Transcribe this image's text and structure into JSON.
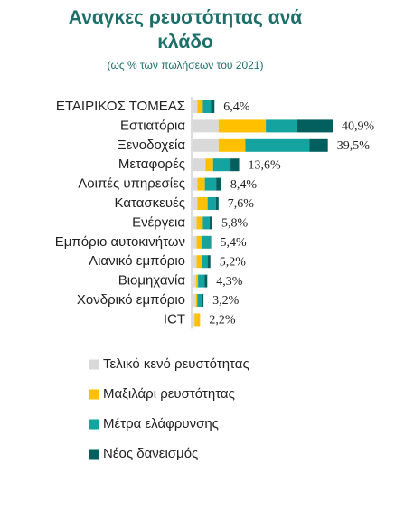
{
  "chart_data": {
    "type": "stacked-bar-horizontal",
    "title": "Αναγκες ρευστότητας ανά κλάδο",
    "subtitle": "(ως % των πωλήσεων του 2021)",
    "categories": [
      "ΕΤΑΙΡΙΚΟΣ ΤΟΜΕΑΣ",
      "Εστιατόρια",
      "Ξενοδοχεία",
      "Μεταφορές",
      "Λοιπές υπηρεσίες",
      "Κατασκευές",
      "Ενέργεια",
      "Εμπόριο αυτοκινήτων",
      "Λιανικό εμπόριο",
      "Βιομηχανία",
      "Χονδρικό εμπόριο",
      "ICT"
    ],
    "series": [
      {
        "name": "Τελικό κενό ρευστότητας",
        "color": "#d9d9d9",
        "values": [
          1.4,
          7.6,
          7.6,
          3.8,
          1.4,
          1.4,
          1.2,
          1.2,
          1.2,
          1.0,
          1.0,
          0.6
        ]
      },
      {
        "name": "Μαξιλάρι ρευστότητας",
        "color": "#ffc000",
        "values": [
          1.6,
          13.8,
          7.8,
          2.2,
          2.2,
          3.0,
          1.8,
          1.4,
          1.6,
          0.6,
          0.4,
          1.6
        ]
      },
      {
        "name": "Μέτρα ελάφρυνσης",
        "color": "#14a39e",
        "values": [
          2.4,
          9.2,
          18.7,
          5.1,
          3.3,
          2.4,
          2.0,
          2.6,
          1.6,
          1.9,
          1.4,
          0
        ]
      },
      {
        "name": "Νέος δανεισμός",
        "color": "#035f5d",
        "values": [
          1.0,
          10.3,
          5.4,
          2.5,
          1.5,
          0.8,
          0.8,
          0.2,
          0.8,
          0.8,
          0.4,
          0
        ]
      }
    ],
    "totals": [
      6.4,
      40.9,
      39.5,
      13.6,
      8.4,
      7.6,
      5.8,
      5.4,
      5.2,
      4.3,
      3.2,
      2.2
    ],
    "total_labels": [
      "6,4%",
      "40,9%",
      "39,5%",
      "13,6%",
      "8,4%",
      "7,6%",
      "5,8%",
      "5,4%",
      "5,2%",
      "4,3%",
      "3,2%",
      "2,2%"
    ],
    "legend": "bottom"
  }
}
